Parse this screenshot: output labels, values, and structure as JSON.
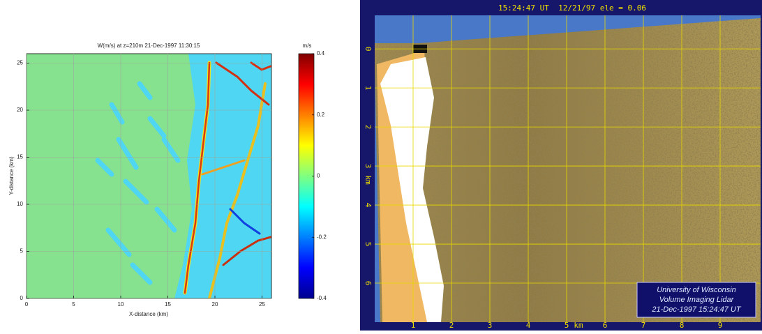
{
  "chart_data": [
    {
      "type": "heatmap",
      "title": "W(m/s) at z=210m 21-Dec-1997 11:30:15",
      "xlabel": "X-distance (km)",
      "ylabel": "Y-distance (km)",
      "xlim": [
        0,
        26
      ],
      "ylim": [
        0,
        26
      ],
      "xticks": [
        0,
        5,
        10,
        15,
        20,
        25
      ],
      "yticks": [
        0,
        5,
        10,
        15,
        20,
        25
      ],
      "grid": true,
      "colorbar": {
        "label": "m/s",
        "lim": [
          -0.4,
          0.4
        ],
        "ticks": [
          -0.4,
          -0.2,
          0,
          0.2,
          0.4
        ],
        "colormap": "jet"
      }
    },
    {
      "type": "image",
      "title": "15:24:47 UT  12/21/97 ele = 0.06",
      "xlabel": "km",
      "ylabel": "km",
      "xlim": [
        0,
        10
      ],
      "ylim": [
        -0.86,
        7
      ],
      "xticks": [
        1,
        2,
        3,
        4,
        5,
        6,
        7,
        8,
        9
      ],
      "yticks": [
        0,
        1,
        2,
        3,
        4,
        5,
        6
      ],
      "grid": true,
      "grid_color": "#e8d800",
      "label_color": "#f0e000",
      "caption": [
        "University of Wisconsin",
        "Volume Imaging Lidar",
        "21-Dec-1997 15:24:47 UT"
      ]
    }
  ]
}
